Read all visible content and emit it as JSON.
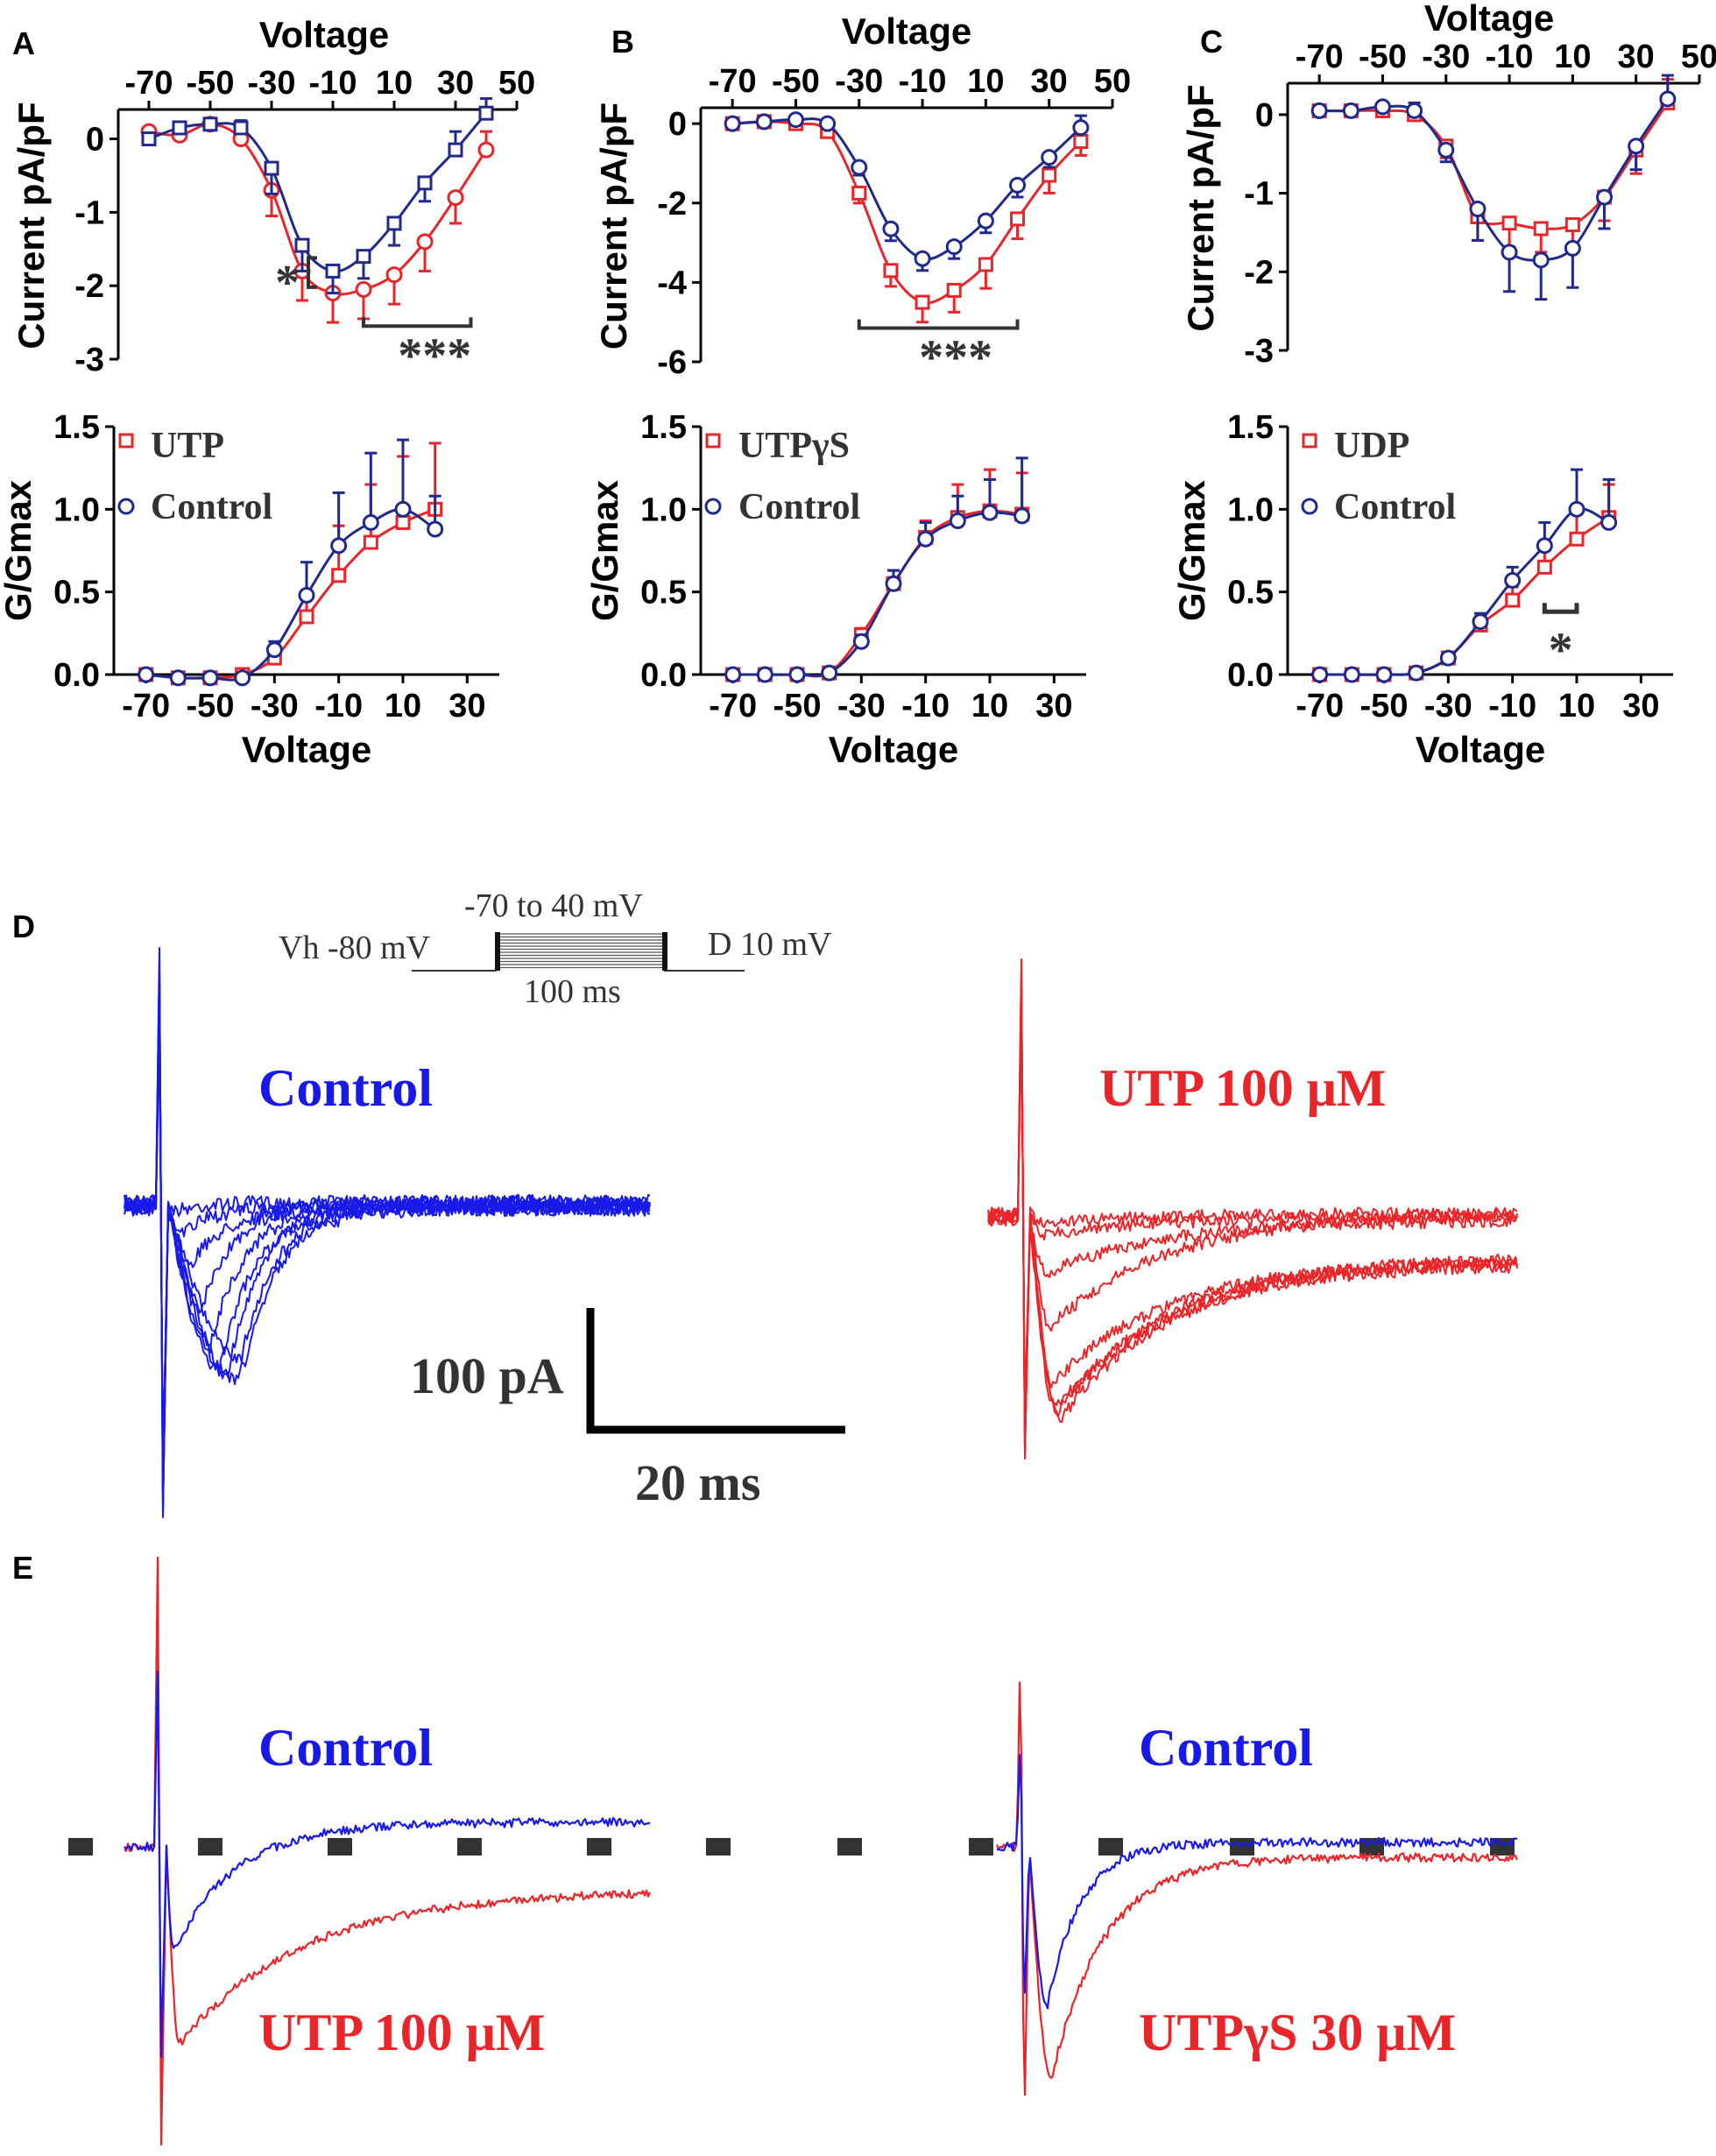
{
  "colors": {
    "red": "#e8262a",
    "navy": "#1f2a8c",
    "blue": "#1a1ae8",
    "axis": "#000000",
    "scale": "#000000",
    "dash": "#333333",
    "sig": "#333333"
  },
  "panels": {
    "A": "A",
    "B": "B",
    "C": "C",
    "D": "D",
    "E": "E"
  },
  "chart_data": [
    {
      "id": "A_iv",
      "type": "line",
      "panel": "A",
      "title": "",
      "xlabel": "Voltage",
      "ylabel": "Current pA/pF",
      "xlim": [
        -80,
        50
      ],
      "ylim": [
        -3,
        0.4
      ],
      "xticks": [
        "-70",
        "-50",
        "-30",
        "-10",
        "10",
        "30",
        "50"
      ],
      "yticks": [
        "0",
        "-1",
        "-2",
        "-3"
      ],
      "x_axis": "top",
      "significance": [
        {
          "label": "*",
          "from_x": -10,
          "to_x": -10,
          "kind": "bracket_v",
          "y1": -1.62,
          "y2": -2.02
        },
        {
          "label": "***",
          "from_x": 0,
          "to_x": 35,
          "kind": "bracket_h",
          "y": -2.55
        }
      ],
      "series": [
        {
          "name": "UTP",
          "color": "red",
          "marker": "circle",
          "x": [
            -70,
            -60,
            -50,
            -40,
            -30,
            -20,
            -10,
            0,
            10,
            20,
            30,
            40
          ],
          "y": [
            0.1,
            0.05,
            0.2,
            0,
            -0.7,
            -1.8,
            -2.1,
            -2.05,
            -1.85,
            -1.4,
            -0.8,
            -0.15
          ],
          "err": [
            0.05,
            0.05,
            0.05,
            0.1,
            0.35,
            0.4,
            0.4,
            0.4,
            0.4,
            0.4,
            0.35,
            0.25
          ]
        },
        {
          "name": "Control",
          "color": "navy",
          "marker": "square",
          "x": [
            -70,
            -60,
            -50,
            -40,
            -30,
            -20,
            -10,
            0,
            10,
            20,
            30,
            40
          ],
          "y": [
            0,
            0.15,
            0.2,
            0.15,
            -0.4,
            -1.45,
            -1.8,
            -1.6,
            -1.15,
            -0.6,
            -0.15,
            0.35
          ],
          "err": [
            0.05,
            0.05,
            0.05,
            0.1,
            0.35,
            0.35,
            0.3,
            0.3,
            0.3,
            0.25,
            0.25,
            0.2
          ]
        }
      ]
    },
    {
      "id": "B_iv",
      "type": "line",
      "panel": "B",
      "title": "",
      "xlabel": "Voltage",
      "ylabel": "Current pA/pF",
      "xlim": [
        -80,
        50
      ],
      "ylim": [
        -6,
        0.4
      ],
      "xticks": [
        "-70",
        "-50",
        "-30",
        "-10",
        "10",
        "30",
        "50"
      ],
      "yticks": [
        "0",
        "-2",
        "-4",
        "-6"
      ],
      "x_axis": "top",
      "significance": [
        {
          "label": "***",
          "from_x": -30,
          "to_x": 20,
          "kind": "bracket_h",
          "y": -5.15
        }
      ],
      "series": [
        {
          "name": "UTPγS",
          "color": "red",
          "marker": "square",
          "x": [
            -70,
            -60,
            -50,
            -40,
            -30,
            -20,
            -10,
            0,
            10,
            20,
            30,
            40
          ],
          "y": [
            0,
            0.05,
            0,
            -0.2,
            -1.75,
            -3.7,
            -4.5,
            -4.2,
            -3.55,
            -2.4,
            -1.3,
            -0.45
          ],
          "err": [
            0.05,
            0.05,
            0.1,
            0.15,
            0.25,
            0.4,
            0.5,
            0.55,
            0.6,
            0.5,
            0.45,
            0.35
          ]
        },
        {
          "name": "Control",
          "color": "navy",
          "marker": "circle",
          "x": [
            -70,
            -60,
            -50,
            -40,
            -30,
            -20,
            -10,
            0,
            10,
            20,
            30,
            40
          ],
          "y": [
            0,
            0.05,
            0.1,
            0,
            -1.1,
            -2.65,
            -3.4,
            -3.1,
            -2.45,
            -1.55,
            -0.85,
            -0.1
          ],
          "err": [
            0.05,
            0.05,
            0.05,
            0.1,
            0.2,
            0.3,
            0.3,
            0.3,
            0.3,
            0.3,
            0.25,
            0.3
          ]
        }
      ]
    },
    {
      "id": "C_iv",
      "type": "line",
      "panel": "C",
      "title": "",
      "xlabel": "Voltage",
      "ylabel": "Current pA/pF",
      "xlim": [
        -80,
        50
      ],
      "ylim": [
        -3,
        0.4
      ],
      "xticks": [
        "-70",
        "-50",
        "-30",
        "-10",
        "10",
        "30",
        "50"
      ],
      "yticks": [
        "0",
        "-1",
        "-2",
        "-3"
      ],
      "x_axis": "top",
      "significance": [],
      "series": [
        {
          "name": "UDP",
          "color": "red",
          "marker": "square",
          "x": [
            -70,
            -60,
            -50,
            -40,
            -30,
            -20,
            -10,
            0,
            10,
            20,
            30,
            40
          ],
          "y": [
            0.05,
            0.05,
            0.05,
            0,
            -0.4,
            -1.3,
            -1.38,
            -1.45,
            -1.4,
            -1.05,
            -0.45,
            0.15
          ],
          "err": [
            0.05,
            0.05,
            0.05,
            0.1,
            0.15,
            0.3,
            0.3,
            0.3,
            0.3,
            0.3,
            0.3,
            0.3
          ]
        },
        {
          "name": "Control",
          "color": "navy",
          "marker": "circle",
          "x": [
            -70,
            -60,
            -50,
            -40,
            -30,
            -20,
            -10,
            0,
            10,
            20,
            30,
            40
          ],
          "y": [
            0.05,
            0.05,
            0.1,
            0.05,
            -0.45,
            -1.2,
            -1.75,
            -1.85,
            -1.7,
            -1.05,
            -0.4,
            0.2
          ],
          "err": [
            0.05,
            0.05,
            0.05,
            0.1,
            0.15,
            0.4,
            0.5,
            0.5,
            0.5,
            0.4,
            0.3,
            0.3
          ]
        }
      ]
    },
    {
      "id": "A_g",
      "type": "line",
      "panel": "A",
      "title": "",
      "xlabel": "Voltage",
      "ylabel": "G/Gmax",
      "xlim": [
        -80,
        40
      ],
      "ylim": [
        0,
        1.5
      ],
      "xticks": [
        "-70",
        "-50",
        "-30",
        "-10",
        "10",
        "30"
      ],
      "yticks": [
        "0.0",
        "0.5",
        "1.0",
        "1.5"
      ],
      "x_axis": "bottom",
      "significance": [],
      "series": [
        {
          "name": "UTP",
          "color": "red",
          "marker": "square",
          "x": [
            -70,
            -60,
            -50,
            -40,
            -30,
            -20,
            -10,
            0,
            10,
            20
          ],
          "y": [
            0,
            -0.02,
            -0.02,
            0,
            0.1,
            0.35,
            0.6,
            0.8,
            0.92,
            1.0
          ],
          "err": [
            0.02,
            0.02,
            0.02,
            0.02,
            0.05,
            0.12,
            0.3,
            0.35,
            0.4,
            0.4
          ]
        },
        {
          "name": "Control",
          "color": "navy",
          "marker": "circle",
          "x": [
            -70,
            -60,
            -50,
            -40,
            -30,
            -20,
            -10,
            0,
            10,
            20
          ],
          "y": [
            0,
            -0.02,
            -0.02,
            -0.02,
            0.15,
            0.48,
            0.78,
            0.92,
            1.0,
            0.88
          ],
          "err": [
            0.02,
            0.02,
            0.02,
            0.02,
            0.05,
            0.2,
            0.32,
            0.42,
            0.42,
            0.2
          ]
        }
      ]
    },
    {
      "id": "B_g",
      "type": "line",
      "panel": "B",
      "title": "",
      "xlabel": "Voltage",
      "ylabel": "G/Gmax",
      "xlim": [
        -80,
        40
      ],
      "ylim": [
        0,
        1.5
      ],
      "xticks": [
        "-70",
        "-50",
        "-30",
        "-10",
        "10",
        "30"
      ],
      "yticks": [
        "0.0",
        "0.5",
        "1.0",
        "1.5"
      ],
      "x_axis": "bottom",
      "significance": [],
      "series": [
        {
          "name": "UTPγS",
          "color": "red",
          "marker": "square",
          "x": [
            -70,
            -60,
            -50,
            -40,
            -30,
            -20,
            -10,
            0,
            10,
            20
          ],
          "y": [
            0,
            0,
            0,
            0.01,
            0.24,
            0.55,
            0.83,
            0.95,
            0.99,
            0.97
          ],
          "err": [
            0.02,
            0.02,
            0.02,
            0.02,
            0.04,
            0.08,
            0.1,
            0.2,
            0.25,
            0.25
          ]
        },
        {
          "name": "Control",
          "color": "navy",
          "marker": "circle",
          "x": [
            -70,
            -60,
            -50,
            -40,
            -30,
            -20,
            -10,
            0,
            10,
            20
          ],
          "y": [
            0,
            0,
            0,
            0.01,
            0.2,
            0.55,
            0.82,
            0.93,
            0.98,
            0.96
          ],
          "err": [
            0.02,
            0.02,
            0.02,
            0.02,
            0.04,
            0.08,
            0.1,
            0.15,
            0.2,
            0.35
          ]
        }
      ]
    },
    {
      "id": "C_g",
      "type": "line",
      "panel": "C",
      "title": "",
      "xlabel": "Voltage",
      "ylabel": "G/Gmax",
      "xlim": [
        -80,
        40
      ],
      "ylim": [
        0,
        1.5
      ],
      "xticks": [
        "-70",
        "-50",
        "-30",
        "-10",
        "10",
        "30"
      ],
      "yticks": [
        "0.0",
        "0.5",
        "1.0",
        "1.5"
      ],
      "x_axis": "bottom",
      "significance": [
        {
          "label": "*",
          "from_x": 0,
          "to_x": 10,
          "kind": "bracket_h_up",
          "y": 0.38
        }
      ],
      "series": [
        {
          "name": "UDP",
          "color": "red",
          "marker": "square",
          "x": [
            -70,
            -60,
            -50,
            -40,
            -30,
            -20,
            -10,
            0,
            10,
            20
          ],
          "y": [
            0,
            0,
            0,
            0.01,
            0.1,
            0.3,
            0.45,
            0.65,
            0.82,
            0.95
          ],
          "err": [
            0.02,
            0.02,
            0.02,
            0.02,
            0.03,
            0.05,
            0.08,
            0.1,
            0.15,
            0.2
          ]
        },
        {
          "name": "Control",
          "color": "navy",
          "marker": "circle",
          "x": [
            -70,
            -60,
            -50,
            -40,
            -30,
            -20,
            -10,
            0,
            10,
            20
          ],
          "y": [
            0,
            0,
            0,
            0.01,
            0.1,
            0.32,
            0.57,
            0.78,
            1.0,
            0.92
          ],
          "err": [
            0.02,
            0.02,
            0.02,
            0.02,
            0.03,
            0.05,
            0.08,
            0.14,
            0.24,
            0.26
          ]
        }
      ]
    }
  ],
  "legends": {
    "A": {
      "treatment": "UTP",
      "control": "Control"
    },
    "B": {
      "treatment": "UTPγS",
      "control": "Control"
    },
    "C": {
      "treatment": "UDP",
      "control": "Control"
    }
  },
  "panel_d": {
    "protocol": {
      "range": "-70 to 40 mV",
      "holding": "Vh -80 mV",
      "step": "D 10 mV",
      "duration": "100 ms"
    },
    "left_label": "Control",
    "right_label": "UTP 100 μM",
    "scale_current": "100 pA",
    "scale_time": "20 ms"
  },
  "panel_e": {
    "left_top": "Control",
    "left_bottom": "UTP 100 μM",
    "right_top": "Control",
    "right_bottom": "UTPγS 30 μM"
  }
}
